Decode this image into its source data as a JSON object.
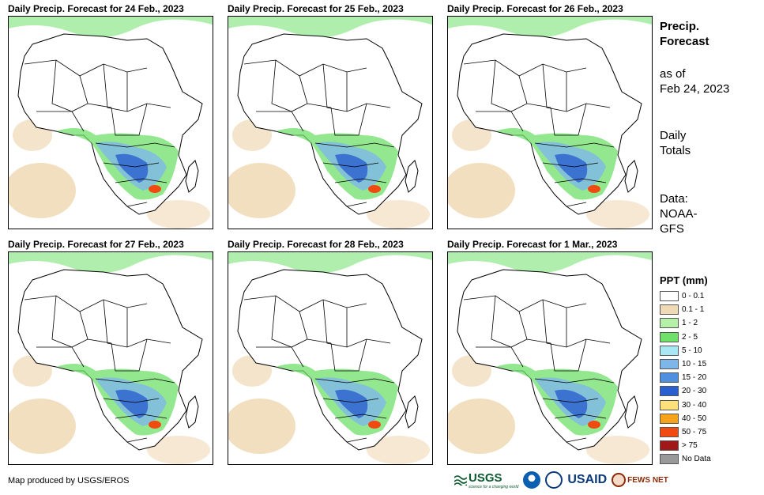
{
  "panels": [
    {
      "title": "Daily Precip. Forecast for 24 Feb., 2023"
    },
    {
      "title": "Daily Precip. Forecast for 25 Feb., 2023"
    },
    {
      "title": "Daily Precip. Forecast for 26 Feb., 2023"
    },
    {
      "title": "Daily Precip. Forecast for 27 Feb., 2023"
    },
    {
      "title": "Daily Precip. Forecast for 28 Feb., 2023"
    },
    {
      "title": "Daily Precip. Forecast for 1 Mar., 2023"
    }
  ],
  "info": {
    "title_line1": "Precip.",
    "title_line2": "Forecast",
    "asof_line1": "as of",
    "asof_line2": "Feb 24, 2023",
    "totals_line1": "Daily",
    "totals_line2": "Totals",
    "data_line1": "Data:",
    "data_line2": "NOAA-",
    "data_line3": "GFS"
  },
  "legend": {
    "title": "PPT (mm)",
    "items": [
      {
        "label": "0 - 0.1",
        "color": "#ffffff"
      },
      {
        "label": "0.1 - 1",
        "color": "#f0d9b5"
      },
      {
        "label": "1 - 2",
        "color": "#b5f0a8"
      },
      {
        "label": "2 - 5",
        "color": "#6fe06a"
      },
      {
        "label": "5 - 10",
        "color": "#a8e8f5"
      },
      {
        "label": "10 - 15",
        "color": "#7fb6ea"
      },
      {
        "label": "15 - 20",
        "color": "#4e8fe0"
      },
      {
        "label": "20 - 30",
        "color": "#2a5fd0"
      },
      {
        "label": "30 - 40",
        "color": "#fde07a"
      },
      {
        "label": "40 - 50",
        "color": "#f7a21b"
      },
      {
        "label": "50 - 75",
        "color": "#f04a10"
      },
      {
        "label": "> 75",
        "color": "#a01818"
      },
      {
        "label": "No Data",
        "color": "#999999"
      }
    ]
  },
  "footer": {
    "credit": "Map produced by USGS/EROS",
    "usgs": "USGS",
    "usgs_tagline": "science for a changing world",
    "usaid": "USAID",
    "fews": "FEWS NET"
  }
}
